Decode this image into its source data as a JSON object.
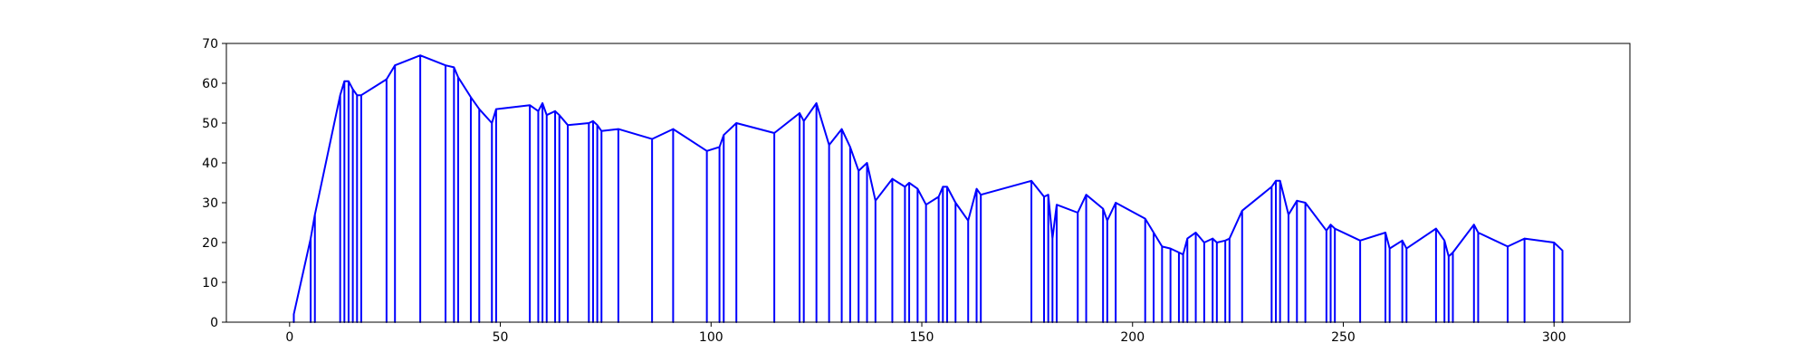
{
  "chart_data": {
    "type": "line",
    "title": "",
    "xlabel": "",
    "ylabel": "",
    "xlim": [
      -15,
      318
    ],
    "ylim": [
      0,
      70
    ],
    "xticks": [
      0,
      50,
      100,
      150,
      200,
      250,
      300
    ],
    "yticks": [
      0,
      10,
      20,
      30,
      40,
      50,
      60,
      70
    ],
    "grid": false,
    "legend": "none",
    "line_color": "#0000ff",
    "series": [
      {
        "name": "",
        "drops_to_zero": true,
        "points": [
          [
            1,
            2
          ],
          [
            5,
            21
          ],
          [
            6,
            27
          ],
          [
            12,
            57
          ],
          [
            13,
            60.5
          ],
          [
            14,
            60.5
          ],
          [
            15,
            58.5
          ],
          [
            16,
            57
          ],
          [
            17,
            57
          ],
          [
            23,
            61
          ],
          [
            25,
            64.5
          ],
          [
            31,
            67
          ],
          [
            37,
            64.5
          ],
          [
            39,
            64
          ],
          [
            40,
            61.5
          ],
          [
            43,
            56.5
          ],
          [
            45,
            53.5
          ],
          [
            48,
            50
          ],
          [
            49,
            53.5
          ],
          [
            57,
            54.5
          ],
          [
            59,
            53
          ],
          [
            60,
            55
          ],
          [
            61,
            52
          ],
          [
            63,
            53
          ],
          [
            64,
            52
          ],
          [
            66,
            49.5
          ],
          [
            71,
            50
          ],
          [
            72,
            50.5
          ],
          [
            73,
            49.5
          ],
          [
            74,
            48
          ],
          [
            78,
            48.5
          ],
          [
            86,
            46
          ],
          [
            91,
            48.5
          ],
          [
            99,
            43
          ],
          [
            102,
            44
          ],
          [
            103,
            47
          ],
          [
            106,
            50
          ],
          [
            115,
            47.5
          ],
          [
            121,
            52.5
          ],
          [
            122,
            50.5
          ],
          [
            125,
            55
          ],
          [
            128,
            44.5
          ],
          [
            131,
            48.5
          ],
          [
            133,
            44
          ],
          [
            135,
            38
          ],
          [
            137,
            40
          ],
          [
            139,
            30.5
          ],
          [
            143,
            36
          ],
          [
            146,
            34
          ],
          [
            147,
            35
          ],
          [
            149,
            33.5
          ],
          [
            151,
            29.5
          ],
          [
            154,
            31.5
          ],
          [
            155,
            34
          ],
          [
            156,
            34
          ],
          [
            158,
            30
          ],
          [
            161,
            25.5
          ],
          [
            163,
            33.5
          ],
          [
            164,
            32
          ],
          [
            176,
            35.5
          ],
          [
            179,
            31.5
          ],
          [
            180,
            32
          ],
          [
            181,
            21
          ],
          [
            182,
            29.5
          ],
          [
            187,
            27.5
          ],
          [
            189,
            32
          ],
          [
            193,
            28.5
          ],
          [
            194,
            25.5
          ],
          [
            196,
            30
          ],
          [
            203,
            26
          ],
          [
            205,
            22.5
          ],
          [
            207,
            19
          ],
          [
            209,
            18.5
          ],
          [
            211,
            17.5
          ],
          [
            212,
            17
          ],
          [
            213,
            21
          ],
          [
            215,
            22.5
          ],
          [
            217,
            20
          ],
          [
            219,
            21
          ],
          [
            220,
            20
          ],
          [
            222,
            20.5
          ],
          [
            223,
            21
          ],
          [
            226,
            28
          ],
          [
            233,
            34
          ],
          [
            234,
            35.5
          ],
          [
            235,
            35.5
          ],
          [
            237,
            27
          ],
          [
            239,
            30.5
          ],
          [
            241,
            30
          ],
          [
            246,
            23
          ],
          [
            247,
            24.5
          ],
          [
            248,
            23.5
          ],
          [
            254,
            20.5
          ],
          [
            260,
            22.5
          ],
          [
            261,
            18.5
          ],
          [
            264,
            20.5
          ],
          [
            265,
            18.5
          ],
          [
            272,
            23.5
          ],
          [
            274,
            20.5
          ],
          [
            275,
            16.5
          ],
          [
            276,
            17.5
          ],
          [
            281,
            24.5
          ],
          [
            282,
            22.5
          ],
          [
            289,
            19
          ],
          [
            293,
            21
          ],
          [
            300,
            20
          ],
          [
            302,
            18
          ]
        ]
      }
    ]
  }
}
